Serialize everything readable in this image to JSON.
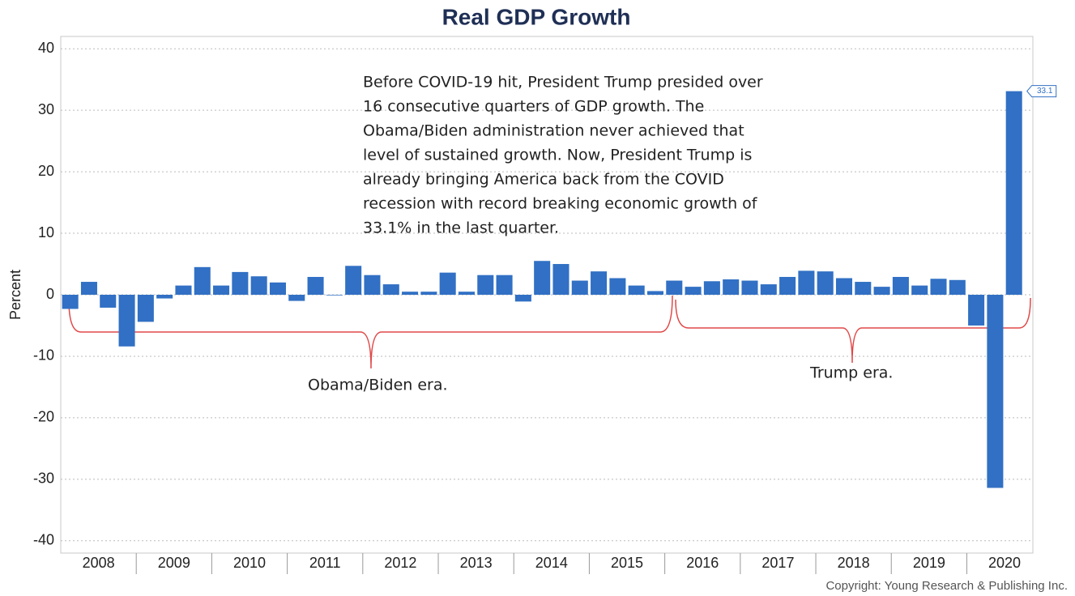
{
  "chart_data": {
    "type": "bar",
    "title": "Real GDP Growth",
    "y_label": "Percent",
    "year_labels": [
      "2008",
      "2009",
      "2010",
      "2011",
      "2012",
      "2013",
      "2014",
      "2015",
      "2016",
      "2017",
      "2018",
      "2019",
      "2020"
    ],
    "values": [
      -2.3,
      2.1,
      -2.1,
      -8.4,
      -4.4,
      -0.6,
      1.5,
      4.5,
      1.5,
      3.7,
      3.0,
      2.0,
      -1.0,
      2.9,
      -0.1,
      4.7,
      3.2,
      1.7,
      0.5,
      0.5,
      3.6,
      0.5,
      3.2,
      3.2,
      -1.1,
      5.5,
      5.0,
      2.3,
      3.8,
      2.7,
      1.5,
      0.6,
      2.3,
      1.3,
      2.2,
      2.5,
      2.3,
      1.7,
      2.9,
      3.9,
      3.8,
      2.7,
      2.1,
      1.3,
      2.9,
      1.5,
      2.6,
      2.4,
      -5.0,
      -31.4,
      33.1
    ],
    "color": "#3170c4",
    "ylim": [
      -42,
      42
    ],
    "yticks": [
      -40,
      -30,
      -20,
      -10,
      0,
      10,
      20,
      30,
      40
    ],
    "grid": true,
    "annotation": [
      "Before COVID-19 hit, President Trump presided over",
      "16 consecutive quarters of GDP growth. The",
      "Obama/Biden administration never achieved that",
      "level of sustained growth. Now, President Trump is",
      "already bringing America back from the COVID",
      "recession with record breaking economic growth of",
      "33.1% in the last quarter."
    ],
    "era_labels": [
      "Obama/Biden era.",
      "Trump era."
    ],
    "copyright": "Copyright: Young Research & Publishing Inc."
  }
}
